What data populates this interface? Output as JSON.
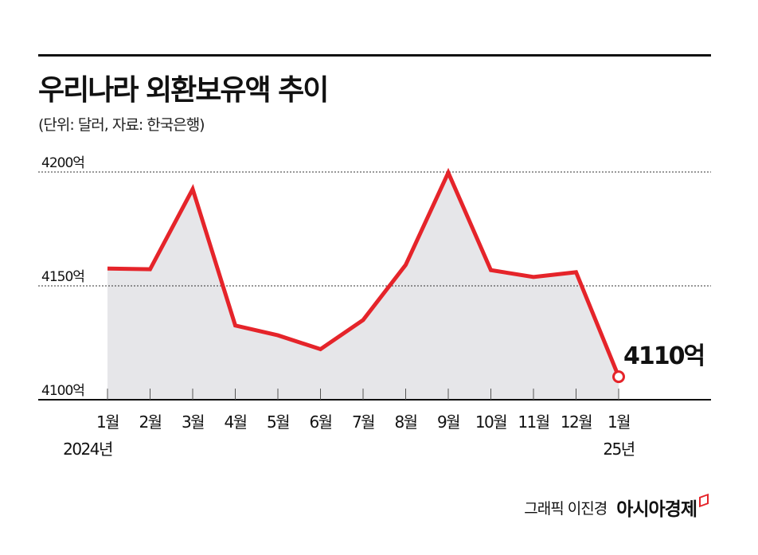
{
  "header": {
    "title": "우리나라 외환보유액 추이",
    "subtitle": "(단위: 달러, 자료: 한국은행)"
  },
  "credit": {
    "graphic": "그래픽 이진경",
    "logo": "아시아경제"
  },
  "colors": {
    "line": "#e5242a",
    "area": "#e6e6e9",
    "text": "#111111"
  },
  "chart_data": {
    "type": "area",
    "title": "우리나라 외환보유액 추이",
    "subtitle": "(단위: 달러, 자료: 한국은행)",
    "categories": [
      "1월",
      "2월",
      "3월",
      "4월",
      "5월",
      "6월",
      "7월",
      "8월",
      "9월",
      "10월",
      "11월",
      "12월",
      "1월"
    ],
    "year_labels": [
      {
        "index": 0,
        "label": "2024년"
      },
      {
        "index": 12,
        "label": "25년"
      }
    ],
    "values": [
      4157.6,
      4157.3,
      4192.5,
      4132.6,
      4128.3,
      4122.2,
      4135.0,
      4159.2,
      4199.7,
      4156.9,
      4153.9,
      4156.0,
      4110.1
    ],
    "ylim": [
      4100,
      4200
    ],
    "yticks": [
      4100,
      4150,
      4200
    ],
    "ytick_labels": [
      "4100억",
      "4150억",
      "4200억"
    ],
    "grid": "dotted horizontal at 4150 and 4200",
    "annotation": {
      "index": 12,
      "label": "4110억"
    },
    "legend": "none"
  }
}
